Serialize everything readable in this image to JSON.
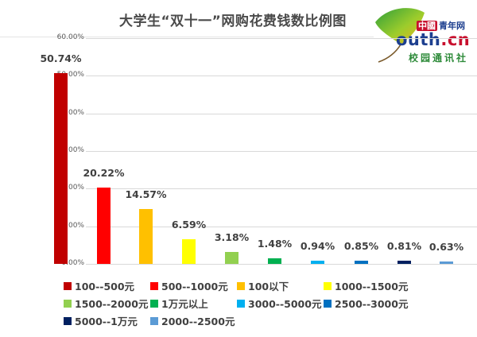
{
  "title": "大学生“双十一”网购花费钱数比例图",
  "logo": {
    "line1_red": "中國",
    "line1_blue": "青年网",
    "line2_main": "outh",
    "line2_dot": ".cn",
    "line3": "校园通讯社"
  },
  "y_axis": {
    "ticks": [
      "60.00%",
      "50.00%",
      "40.00%",
      "30.00%",
      "20.00%",
      "10.00%",
      "0.00%"
    ]
  },
  "bars": [
    {
      "category": "100--500元",
      "value": 50.74,
      "label": "50.74%",
      "color": "#c00000"
    },
    {
      "category": "500--1000元",
      "value": 20.22,
      "label": "20.22%",
      "color": "#ff0000"
    },
    {
      "category": "100以下",
      "value": 14.57,
      "label": "14.57%",
      "color": "#ffc000"
    },
    {
      "category": "1000--1500元",
      "value": 6.59,
      "label": "6.59%",
      "color": "#ffff00"
    },
    {
      "category": "1500--2000元",
      "value": 3.18,
      "label": "3.18%",
      "color": "#92d050"
    },
    {
      "category": "1万元以上",
      "value": 1.48,
      "label": "1.48%",
      "color": "#00b050"
    },
    {
      "category": "3000--5000元",
      "value": 0.94,
      "label": "0.94%",
      "color": "#00b0f0"
    },
    {
      "category": "2500--3000元",
      "value": 0.85,
      "label": "0.85%",
      "color": "#0070c0"
    },
    {
      "category": "5000--1万元",
      "value": 0.81,
      "label": "0.81%",
      "color": "#002060"
    },
    {
      "category": "2000--2500元",
      "value": 0.63,
      "label": "0.63%",
      "color": "#5b9bd5"
    }
  ],
  "legend": [
    {
      "label": "100--500元",
      "color": "#c00000"
    },
    {
      "label": "500--1000元",
      "color": "#ff0000"
    },
    {
      "label": "100以下",
      "color": "#ffc000"
    },
    {
      "label": "1000--1500元",
      "color": "#ffff00"
    },
    {
      "label": "1500--2000元",
      "color": "#92d050"
    },
    {
      "label": "1万元以上",
      "color": "#00b050"
    },
    {
      "label": "3000--5000元",
      "color": "#00b0f0"
    },
    {
      "label": "2500--3000元",
      "color": "#0070c0"
    },
    {
      "label": "5000--1万元",
      "color": "#002060"
    },
    {
      "label": "2000--2500元",
      "color": "#5b9bd5"
    }
  ],
  "chart_data": {
    "type": "bar",
    "title": "大学生“双十一”网购花费钱数比例图",
    "categories": [
      "100--500元",
      "500--1000元",
      "100以下",
      "1000--1500元",
      "1500--2000元",
      "1万元以上",
      "3000--5000元",
      "2500--3000元",
      "5000--1万元",
      "2000--2500元"
    ],
    "values": [
      50.74,
      20.22,
      14.57,
      6.59,
      3.18,
      1.48,
      0.94,
      0.85,
      0.81,
      0.63
    ],
    "data_labels": [
      "50.74%",
      "20.22%",
      "14.57%",
      "6.59%",
      "3.18%",
      "1.48%",
      "0.94%",
      "0.85%",
      "0.81%",
      "0.63%"
    ],
    "xlabel": "",
    "ylabel": "",
    "ylim": [
      0,
      60
    ],
    "y_ticks": [
      "0.00%",
      "10.00%",
      "20.00%",
      "30.00%",
      "40.00%",
      "50.00%",
      "60.00%"
    ],
    "grid": true,
    "legend_position": "bottom"
  }
}
